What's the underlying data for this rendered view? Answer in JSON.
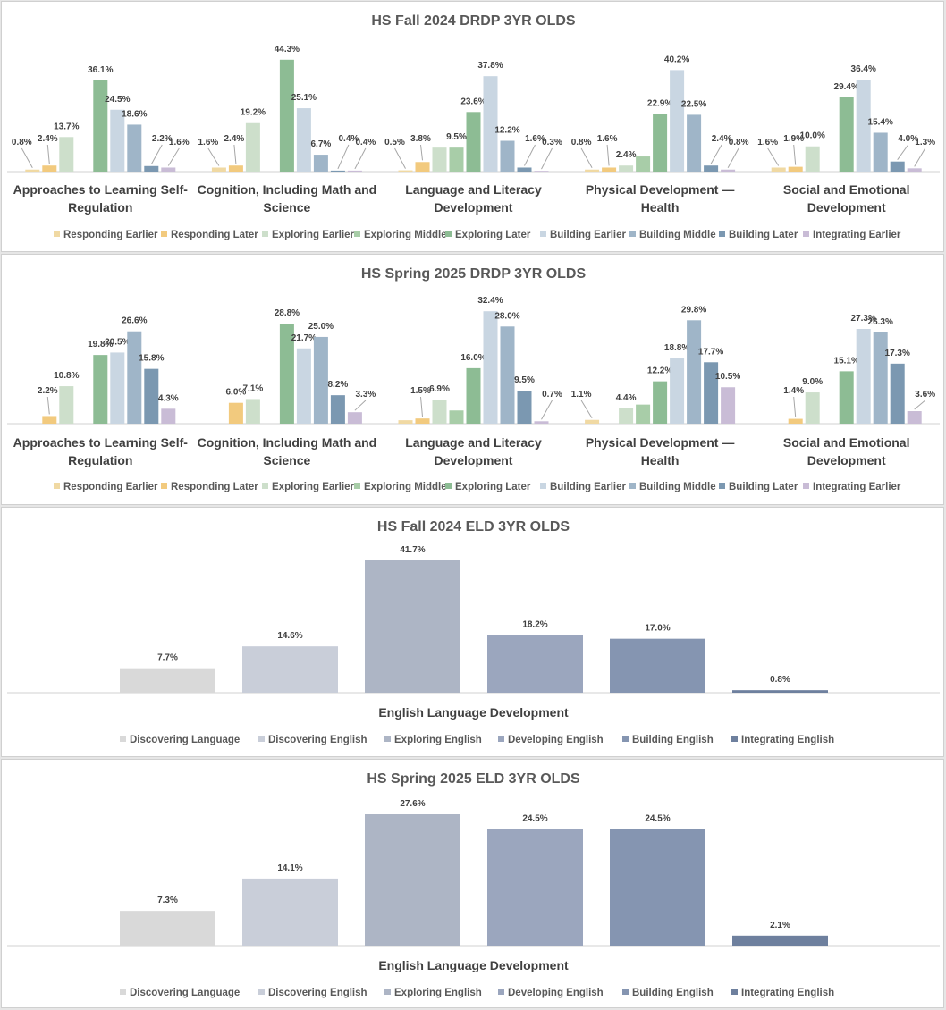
{
  "colors": {
    "drdp": [
      "#f0d9a3",
      "#f2ca7e",
      "#cddfcb",
      "#a8cda8",
      "#8dbc94",
      "#c9d6e2",
      "#9fb5c8",
      "#7b98b1",
      "#c9bcd6"
    ],
    "eld": [
      "#d9d9d9",
      "#c9ced9",
      "#adb5c5",
      "#9ba6be",
      "#8595b1",
      "#6e809e"
    ],
    "leader": "#a6a6a6",
    "axis": "#d0d0d0"
  },
  "chart_data": [
    {
      "type": "bar",
      "title": "HS Fall 2024 DRDP 3YR OLDS",
      "categories": [
        "Approaches to Learning Self-Regulation",
        "Cognition, Including Math and Science",
        "Language and Literacy Development",
        "Physical Development — Health",
        "Social and Emotional Development"
      ],
      "category_lines": [
        [
          "Approaches to Learning Self-",
          "Regulation"
        ],
        [
          "Cognition, Including Math and",
          "Science"
        ],
        [
          "Language and Literacy",
          "Development"
        ],
        [
          "Physical Development —",
          "Health"
        ],
        [
          "Social and Emotional",
          "Development"
        ]
      ],
      "series": [
        {
          "name": "Responding Earlier",
          "values": [
            0.8,
            1.6,
            0.5,
            0.8,
            1.6
          ],
          "labels": [
            "0.8%",
            "1.6%",
            "0.5%",
            "0.8%",
            "1.6%"
          ]
        },
        {
          "name": "Responding Later",
          "values": [
            2.4,
            2.4,
            3.8,
            1.6,
            1.9
          ],
          "labels": [
            "2.4%",
            "2.4%",
            "3.8%",
            "1.6%",
            "1.9%"
          ]
        },
        {
          "name": "Exploring Earlier",
          "values": [
            13.7,
            19.2,
            9.5,
            2.4,
            10.0
          ],
          "labels": [
            "13.7%",
            "19.2%",
            "",
            "2.4%",
            "10.0%"
          ]
        },
        {
          "name": "Exploring Middle",
          "values": [
            0,
            0,
            9.5,
            6.0,
            0
          ],
          "labels": [
            "",
            "",
            "9.5%",
            "",
            ""
          ]
        },
        {
          "name": "Exploring Later",
          "values": [
            36.1,
            44.3,
            23.6,
            22.9,
            29.4
          ],
          "labels": [
            "36.1%",
            "44.3%",
            "23.6%",
            "22.9%",
            "29.4%"
          ]
        },
        {
          "name": "Building Earlier",
          "values": [
            24.5,
            25.1,
            37.8,
            40.2,
            36.4
          ],
          "labels": [
            "24.5%",
            "25.1%",
            "37.8%",
            "40.2%",
            "36.4%"
          ]
        },
        {
          "name": "Building Middle",
          "values": [
            18.6,
            6.7,
            12.2,
            22.5,
            15.4
          ],
          "labels": [
            "18.6%",
            "6.7%",
            "12.2%",
            "22.5%",
            "15.4%"
          ]
        },
        {
          "name": "Building Later",
          "values": [
            2.2,
            0.4,
            1.6,
            2.4,
            4.0
          ],
          "labels": [
            "2.2%",
            "0.4%",
            "1.6%",
            "2.4%",
            "4.0%"
          ]
        },
        {
          "name": "Integrating Earlier",
          "values": [
            1.6,
            0.4,
            0.3,
            0.8,
            1.3
          ],
          "labels": [
            "1.6%",
            "0.4%",
            "0.3%",
            "0.8%",
            "1.3%"
          ]
        }
      ],
      "ylim": [
        0,
        46
      ],
      "legend": "bottom"
    },
    {
      "type": "bar",
      "title": "HS Spring 2025 DRDP 3YR OLDS",
      "categories": [
        "Approaches to Learning Self-Regulation",
        "Cognition, Including Math and Science",
        "Language and Literacy Development",
        "Physical Development — Health",
        "Social and Emotional Development"
      ],
      "category_lines": [
        [
          "Approaches to Learning Self-",
          "Regulation"
        ],
        [
          "Cognition, Including Math and",
          "Science"
        ],
        [
          "Language and Literacy",
          "Development"
        ],
        [
          "Physical Development —",
          "Health"
        ],
        [
          "Social and Emotional",
          "Development"
        ]
      ],
      "series": [
        {
          "name": "Responding Earlier",
          "values": [
            0,
            0,
            1.0,
            1.1,
            0
          ],
          "labels": [
            "",
            "",
            "",
            "1.1%",
            ""
          ]
        },
        {
          "name": "Responding Later",
          "values": [
            2.2,
            6.0,
            1.5,
            0,
            1.4
          ],
          "labels": [
            "2.2%",
            "6.0%",
            "1.5%",
            "",
            "1.4%"
          ]
        },
        {
          "name": "Exploring Earlier",
          "values": [
            10.8,
            7.1,
            6.9,
            4.4,
            9.0
          ],
          "labels": [
            "10.8%",
            "7.1%",
            "6.9%",
            "4.4%",
            "9.0%"
          ]
        },
        {
          "name": "Exploring Middle",
          "values": [
            0,
            0,
            3.8,
            5.5,
            0
          ],
          "labels": [
            "",
            "",
            "",
            "",
            ""
          ]
        },
        {
          "name": "Exploring Later",
          "values": [
            19.8,
            28.8,
            16.0,
            12.2,
            15.1
          ],
          "labels": [
            "19.8%",
            "28.8%",
            "16.0%",
            "12.2%",
            "15.1%"
          ]
        },
        {
          "name": "Building Earlier",
          "values": [
            20.5,
            21.7,
            32.4,
            18.8,
            27.3
          ],
          "labels": [
            "20.5%",
            "21.7%",
            "32.4%",
            "18.8%",
            "27.3%"
          ]
        },
        {
          "name": "Building Middle",
          "values": [
            26.6,
            25.0,
            28.0,
            29.8,
            26.3
          ],
          "labels": [
            "26.6%",
            "25.0%",
            "28.0%",
            "29.8%",
            "26.3%"
          ]
        },
        {
          "name": "Building Later",
          "values": [
            15.8,
            8.2,
            9.5,
            17.7,
            17.3
          ],
          "labels": [
            "15.8%",
            "8.2%",
            "9.5%",
            "17.7%",
            "17.3%"
          ]
        },
        {
          "name": "Integrating Earlier",
          "values": [
            4.3,
            3.3,
            0.7,
            10.5,
            3.6
          ],
          "labels": [
            "4.3%",
            "3.3%",
            "0.7%",
            "10.5%",
            "3.6%"
          ]
        }
      ],
      "ylim": [
        0,
        34
      ],
      "legend": "bottom"
    },
    {
      "type": "bar",
      "title": "HS Fall 2024 ELD 3YR OLDS",
      "xlabel": "English Language Development",
      "series": [
        {
          "name": "Discovering Language",
          "value": 7.7,
          "label": "7.7%"
        },
        {
          "name": "Discovering English",
          "value": 14.6,
          "label": "14.6%"
        },
        {
          "name": "Exploring English",
          "value": 41.7,
          "label": "41.7%"
        },
        {
          "name": "Developing English",
          "value": 18.2,
          "label": "18.2%"
        },
        {
          "name": "Building English",
          "value": 17.0,
          "label": "17.0%"
        },
        {
          "name": "Integrating English",
          "value": 0.8,
          "label": "0.8%"
        }
      ],
      "ylim": [
        0,
        41.7
      ],
      "legend": "bottom"
    },
    {
      "type": "bar",
      "title": "HS Spring 2025 ELD 3YR OLDS",
      "xlabel": "English Language Development",
      "series": [
        {
          "name": "Discovering Language",
          "value": 7.3,
          "label": "7.3%"
        },
        {
          "name": "Discovering English",
          "value": 14.1,
          "label": "14.1%"
        },
        {
          "name": "Exploring English",
          "value": 27.6,
          "label": "27.6%"
        },
        {
          "name": "Developing English",
          "value": 24.5,
          "label": "24.5%"
        },
        {
          "name": "Building English",
          "value": 24.5,
          "label": "24.5%"
        },
        {
          "name": "Integrating English",
          "value": 2.1,
          "label": "2.1%"
        }
      ],
      "ylim": [
        0,
        27.6
      ],
      "legend": "bottom"
    }
  ]
}
